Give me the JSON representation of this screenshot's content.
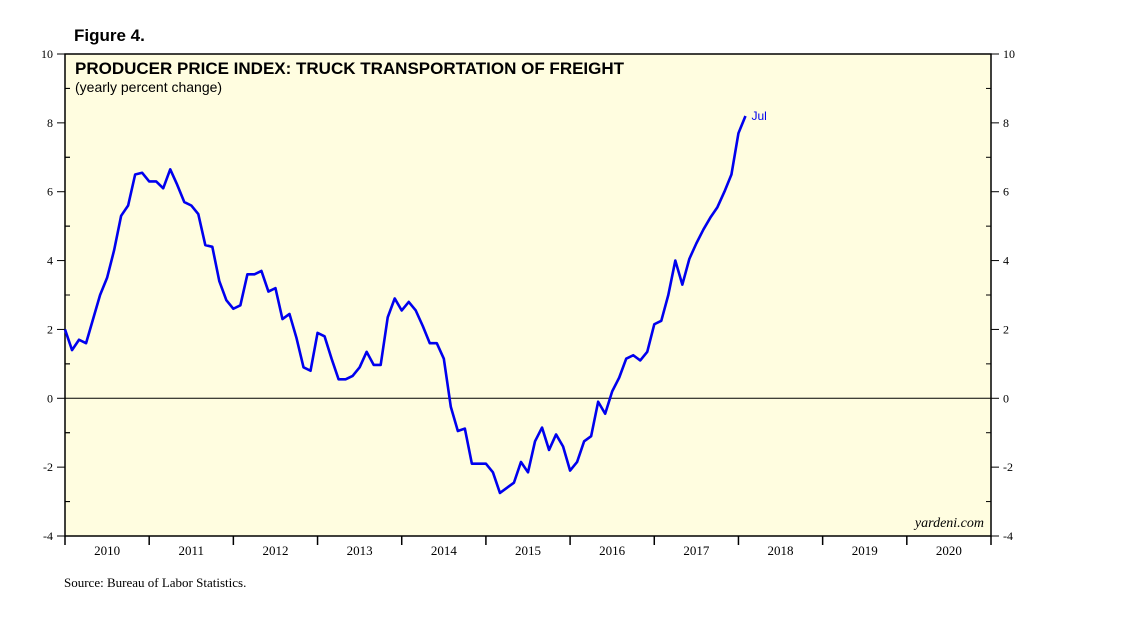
{
  "figure_label": "Figure 4.",
  "source": "Source: Bureau of Labor Statistics.",
  "watermark": "yardeni.com",
  "colors": {
    "background": "#ffffff",
    "plot_bg": "#fffde0",
    "line": "#0000ee",
    "axis": "#000000"
  },
  "chart_data": {
    "type": "line",
    "title": "PRODUCER PRICE INDEX: TRUCK TRANSPORTATION OF FREIGHT",
    "subtitle": "(yearly percent change)",
    "xlabel": "",
    "ylabel": "",
    "x_categories": [
      "2010",
      "2011",
      "2012",
      "2013",
      "2014",
      "2015",
      "2016",
      "2017",
      "2018",
      "2019",
      "2020"
    ],
    "xlim": [
      2010,
      2021
    ],
    "ylim": [
      -4,
      10
    ],
    "y_ticks": [
      -4,
      -2,
      0,
      2,
      4,
      6,
      8,
      10
    ],
    "y_tick_labels": [
      "-4",
      "-2",
      "0",
      "2",
      "4",
      "6",
      "8",
      "10"
    ],
    "grid": false,
    "zero_line": true,
    "end_label": "Jul",
    "series": [
      {
        "name": "",
        "color": "#0000ee",
        "x": [
          "2010-01",
          "2010-02",
          "2010-03",
          "2010-04",
          "2010-05",
          "2010-06",
          "2010-07",
          "2010-08",
          "2010-09",
          "2010-10",
          "2010-11",
          "2010-12",
          "2011-01",
          "2011-02",
          "2011-03",
          "2011-04",
          "2011-05",
          "2011-06",
          "2011-07",
          "2011-08",
          "2011-09",
          "2011-10",
          "2011-11",
          "2011-12",
          "2012-01",
          "2012-02",
          "2012-03",
          "2012-04",
          "2012-05",
          "2012-06",
          "2012-07",
          "2012-08",
          "2012-09",
          "2012-10",
          "2012-11",
          "2012-12",
          "2013-01",
          "2013-02",
          "2013-03",
          "2013-04",
          "2013-05",
          "2013-06",
          "2013-07",
          "2013-08",
          "2013-09",
          "2013-10",
          "2013-11",
          "2013-12",
          "2014-01",
          "2014-02",
          "2014-03",
          "2014-04",
          "2014-05",
          "2014-06",
          "2014-07",
          "2014-08",
          "2014-09",
          "2014-10",
          "2014-11",
          "2014-12",
          "2015-01",
          "2015-02",
          "2015-03",
          "2015-04",
          "2015-05",
          "2015-06",
          "2015-07",
          "2015-08",
          "2015-09",
          "2015-10",
          "2015-11",
          "2015-12",
          "2016-01",
          "2016-02",
          "2016-03",
          "2016-04",
          "2016-05",
          "2016-06",
          "2016-07",
          "2016-08",
          "2016-09",
          "2016-10",
          "2016-11",
          "2016-12",
          "2017-01",
          "2017-02",
          "2017-03",
          "2017-04",
          "2017-05",
          "2017-06",
          "2017-07",
          "2017-08",
          "2017-09",
          "2017-10",
          "2017-11",
          "2017-12",
          "2018-01",
          "2018-02",
          "2018-03",
          "2018-04",
          "2018-05",
          "2018-06",
          "2018-07"
        ],
        "values": [
          2.0,
          1.4,
          1.7,
          1.6,
          2.3,
          3.0,
          3.5,
          4.3,
          5.3,
          5.6,
          6.5,
          6.55,
          6.3,
          6.3,
          6.1,
          6.65,
          6.2,
          5.7,
          5.6,
          5.35,
          4.45,
          4.4,
          3.4,
          2.85,
          2.6,
          2.7,
          3.6,
          3.6,
          3.7,
          3.1,
          3.2,
          2.3,
          2.45,
          1.75,
          0.9,
          0.8,
          1.9,
          1.8,
          1.15,
          0.55,
          0.55,
          0.65,
          0.9,
          1.35,
          0.97,
          0.97,
          2.35,
          2.9,
          2.55,
          2.8,
          2.55,
          2.1,
          1.6,
          1.6,
          1.15,
          -0.25,
          -0.95,
          -0.88,
          -1.9,
          -1.9,
          -1.9,
          -2.15,
          -2.75,
          -2.6,
          -2.45,
          -1.85,
          -2.15,
          -1.25,
          -0.85,
          -1.5,
          -1.05,
          -1.4,
          -2.1,
          -1.85,
          -1.25,
          -1.1,
          -0.1,
          -0.45,
          0.2,
          0.6,
          1.15,
          1.25,
          1.1,
          1.35,
          2.15,
          2.25,
          3.0,
          4.0,
          3.3,
          4.05,
          4.5,
          4.9,
          5.25,
          5.55,
          6.0,
          6.5,
          7.7,
          8.2,
          null,
          null,
          null,
          null,
          null
        ]
      }
    ]
  }
}
